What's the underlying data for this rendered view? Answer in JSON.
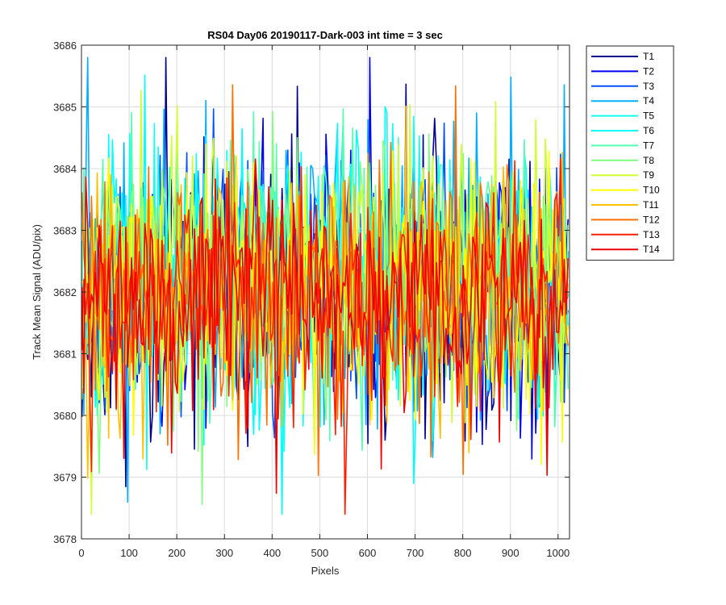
{
  "chart_data": {
    "type": "line",
    "title": "RS04 Day06 20190117-Dark-003 int time = 3 sec",
    "xlabel": "Pixels",
    "ylabel": "Track Mean Signal (ADU/pix)",
    "xlim": [
      0,
      1024
    ],
    "ylim": [
      3678,
      3686
    ],
    "x_ticks": [
      0,
      100,
      200,
      300,
      400,
      500,
      600,
      700,
      800,
      900,
      1000
    ],
    "y_ticks": [
      3678,
      3679,
      3680,
      3681,
      3682,
      3683,
      3684,
      3685,
      3686
    ],
    "grid": true,
    "legend_position": "outside-top-right",
    "series_sampling_step": 4,
    "series": [
      {
        "name": "T1",
        "color": "#00008F",
        "mean": 3682.0,
        "spread": 1.3,
        "seed": 11
      },
      {
        "name": "T2",
        "color": "#0000EF",
        "mean": 3682.1,
        "spread": 1.3,
        "seed": 23
      },
      {
        "name": "T3",
        "color": "#0050FF",
        "mean": 3682.1,
        "spread": 1.3,
        "seed": 37
      },
      {
        "name": "T4",
        "color": "#00AFFF",
        "mean": 3682.2,
        "spread": 1.3,
        "seed": 41
      },
      {
        "name": "T5",
        "color": "#10FFEF",
        "mean": 3682.2,
        "spread": 1.3,
        "seed": 53
      },
      {
        "name": "T6",
        "color": "#00FFFF",
        "mean": 3682.3,
        "spread": 1.3,
        "seed": 67
      },
      {
        "name": "T7",
        "color": "#50FFAF",
        "mean": 3682.3,
        "spread": 1.2,
        "seed": 71
      },
      {
        "name": "T8",
        "color": "#80FF80",
        "mean": 3682.3,
        "spread": 1.2,
        "seed": 83
      },
      {
        "name": "T9",
        "color": "#CFFF30",
        "mean": 3682.3,
        "spread": 1.2,
        "seed": 97
      },
      {
        "name": "T10",
        "color": "#FFFF00",
        "mean": 3682.0,
        "spread": 1.2,
        "seed": 101
      },
      {
        "name": "T11",
        "color": "#FFC000",
        "mean": 3681.9,
        "spread": 1.2,
        "seed": 113
      },
      {
        "name": "T12",
        "color": "#FF7000",
        "mean": 3681.9,
        "spread": 1.2,
        "seed": 127
      },
      {
        "name": "T13",
        "color": "#FF2000",
        "mean": 3681.9,
        "spread": 1.1,
        "seed": 131
      },
      {
        "name": "T14",
        "color": "#EF0000",
        "mean": 3681.9,
        "spread": 1.1,
        "seed": 149
      }
    ]
  }
}
